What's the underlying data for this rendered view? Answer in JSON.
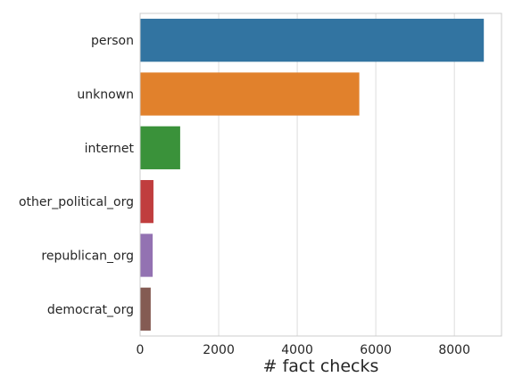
{
  "chart_data": {
    "type": "bar",
    "orientation": "horizontal",
    "categories": [
      "person",
      "unknown",
      "internet",
      "other_political_org",
      "republican_org",
      "democrat_org"
    ],
    "values": [
      8750,
      5580,
      1020,
      340,
      320,
      270
    ],
    "colors": [
      "#3274a1",
      "#e1812c",
      "#3a923a",
      "#c03d3e",
      "#9372b2",
      "#845b53"
    ],
    "title": "",
    "xlabel": "# fact checks",
    "ylabel": "",
    "xlim": [
      0,
      9200
    ],
    "xticks": [
      0,
      2000,
      4000,
      6000,
      8000
    ],
    "grid": true
  }
}
